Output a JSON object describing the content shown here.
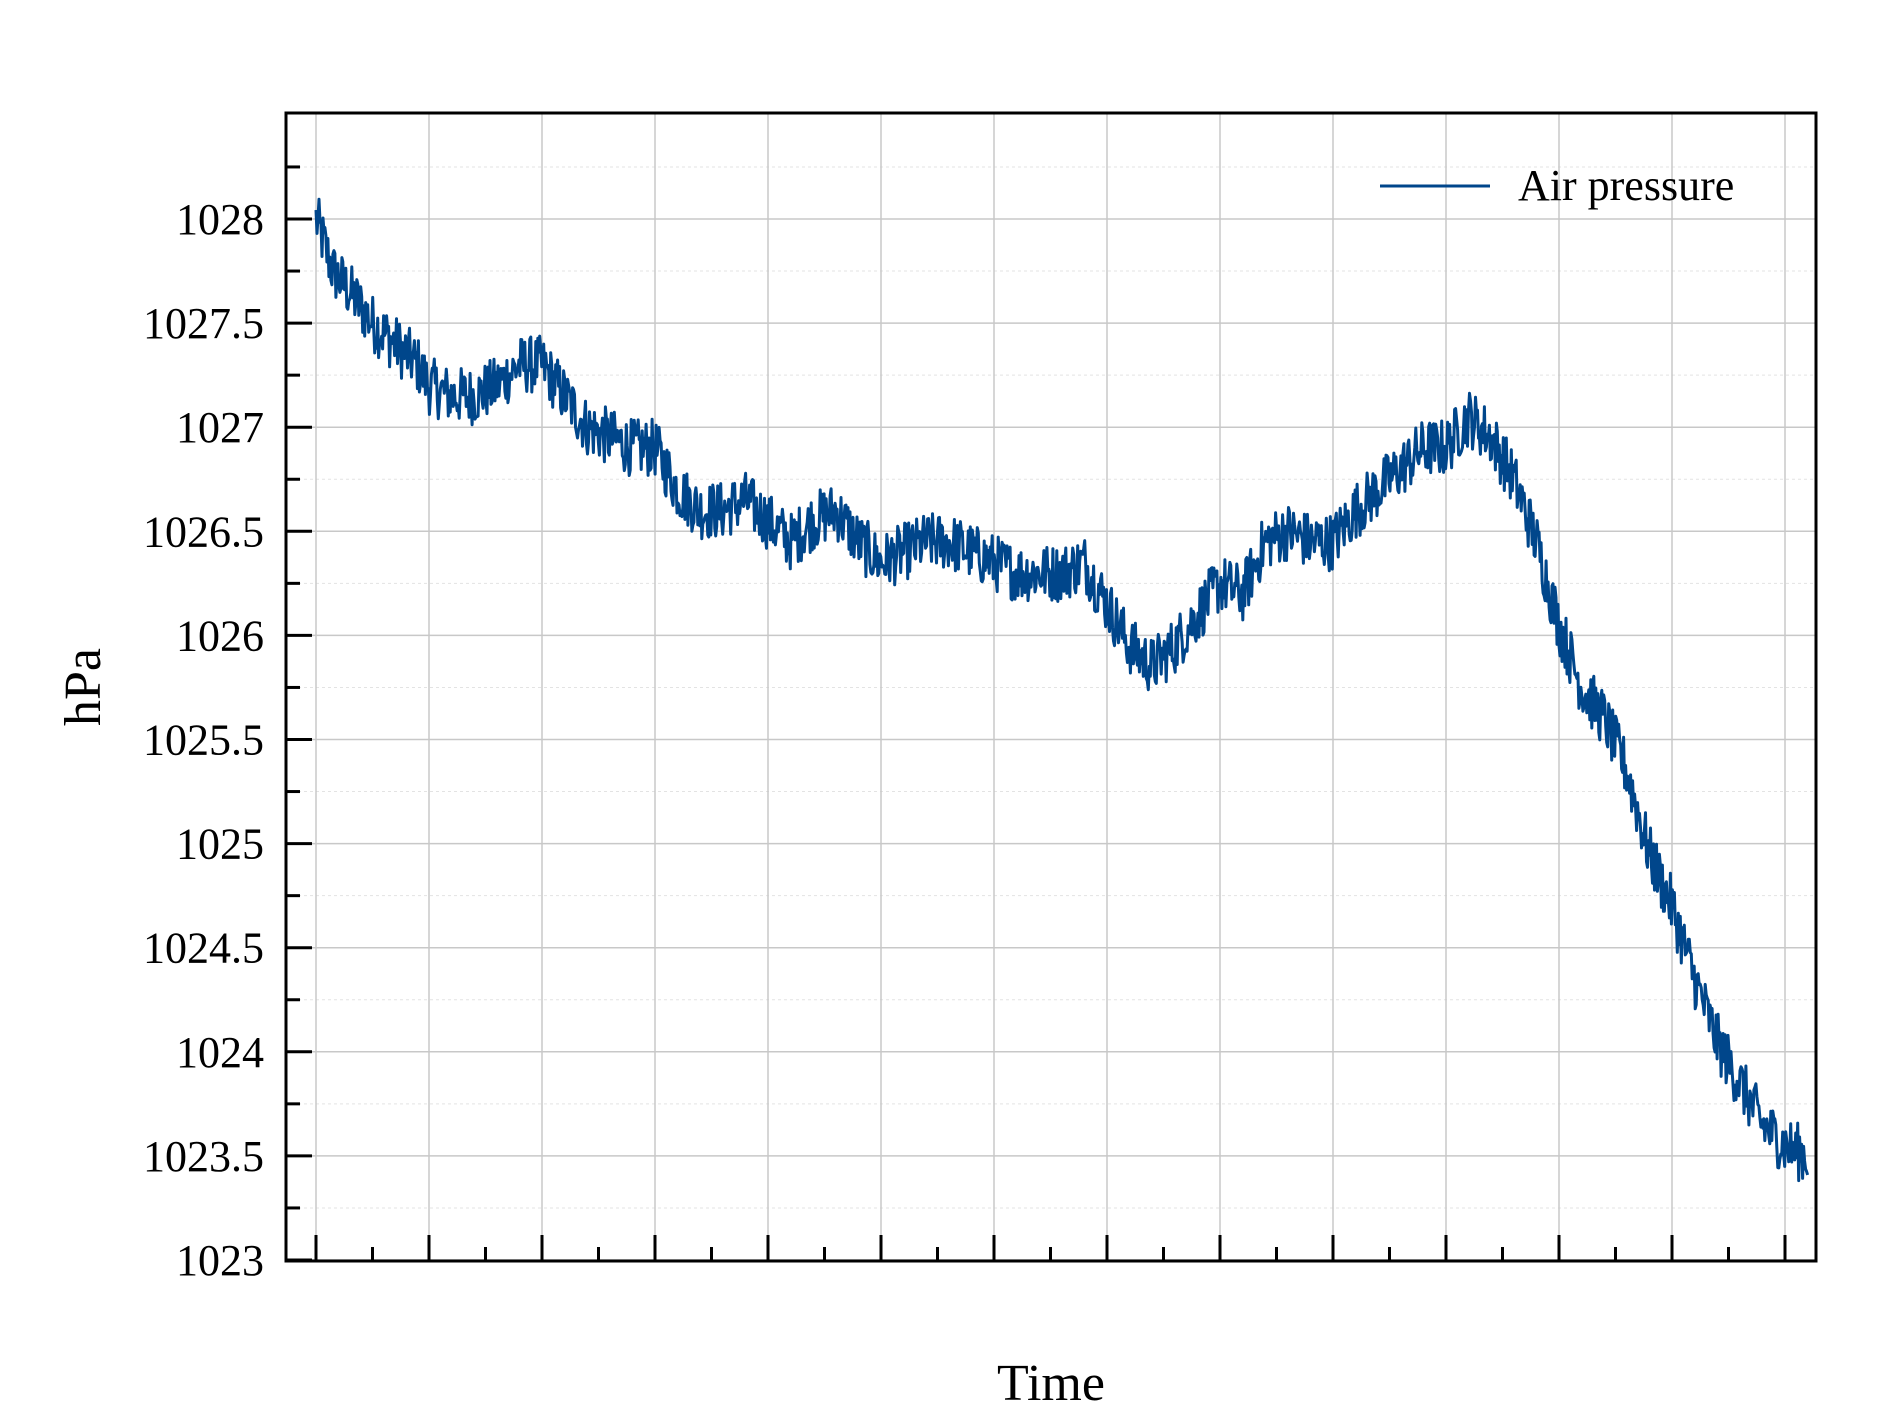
{
  "chart_data": {
    "type": "line",
    "title": "",
    "xlabel": "Time",
    "ylabel": "hPa",
    "ylim": [
      1023,
      1028.5
    ],
    "yticks": [
      1023,
      1023.5,
      1024,
      1024.5,
      1025,
      1025.5,
      1026,
      1026.5,
      1027,
      1027.5,
      1028
    ],
    "ytick_labels": [
      "1023",
      "1023.5",
      "1024",
      "1024.5",
      "1025",
      "1025.5",
      "1026",
      "1026.5",
      "1027",
      "1027.5",
      "1028"
    ],
    "xlim": [
      -0.2,
      13.1
    ],
    "grid": true,
    "legend_position": "top-right",
    "series": [
      {
        "name": "Air pressure",
        "color": "#00468b",
        "x": [
          0,
          0.15,
          0.3,
          0.5,
          0.7,
          0.9,
          1.0,
          1.2,
          1.4,
          1.6,
          1.8,
          2.0,
          2.2,
          2.4,
          2.6,
          2.8,
          3.0,
          3.2,
          3.4,
          3.6,
          3.8,
          4.0,
          4.2,
          4.4,
          4.6,
          4.8,
          5.0,
          5.2,
          5.4,
          5.6,
          5.8,
          6.0,
          6.2,
          6.4,
          6.6,
          6.8,
          7.0,
          7.2,
          7.4,
          7.6,
          7.8,
          8.0,
          8.2,
          8.4,
          8.6,
          8.8,
          9.0,
          9.2,
          9.4,
          9.6,
          9.8,
          10.0,
          10.2,
          10.4,
          10.6,
          10.8,
          11.0,
          11.2,
          11.4,
          11.6,
          11.8,
          12.0,
          12.2,
          12.4,
          12.6,
          12.8,
          13.0,
          13.2
        ],
        "values": [
          1028.0,
          1027.75,
          1027.65,
          1027.5,
          1027.4,
          1027.3,
          1027.2,
          1027.15,
          1027.15,
          1027.2,
          1027.3,
          1027.3,
          1027.15,
          1027.0,
          1026.95,
          1026.9,
          1026.9,
          1026.7,
          1026.6,
          1026.6,
          1026.65,
          1026.55,
          1026.45,
          1026.55,
          1026.6,
          1026.45,
          1026.35,
          1026.4,
          1026.45,
          1026.45,
          1026.4,
          1026.35,
          1026.3,
          1026.3,
          1026.3,
          1026.35,
          1026.15,
          1025.95,
          1025.85,
          1025.95,
          1026.1,
          1026.25,
          1026.2,
          1026.45,
          1026.5,
          1026.45,
          1026.45,
          1026.6,
          1026.7,
          1026.8,
          1026.9,
          1026.9,
          1027.05,
          1026.95,
          1026.75,
          1026.45,
          1026.05,
          1025.75,
          1025.6,
          1025.35,
          1024.95,
          1024.7,
          1024.35,
          1024.05,
          1023.85,
          1023.65,
          1023.55,
          1023.5
        ]
      }
    ]
  }
}
